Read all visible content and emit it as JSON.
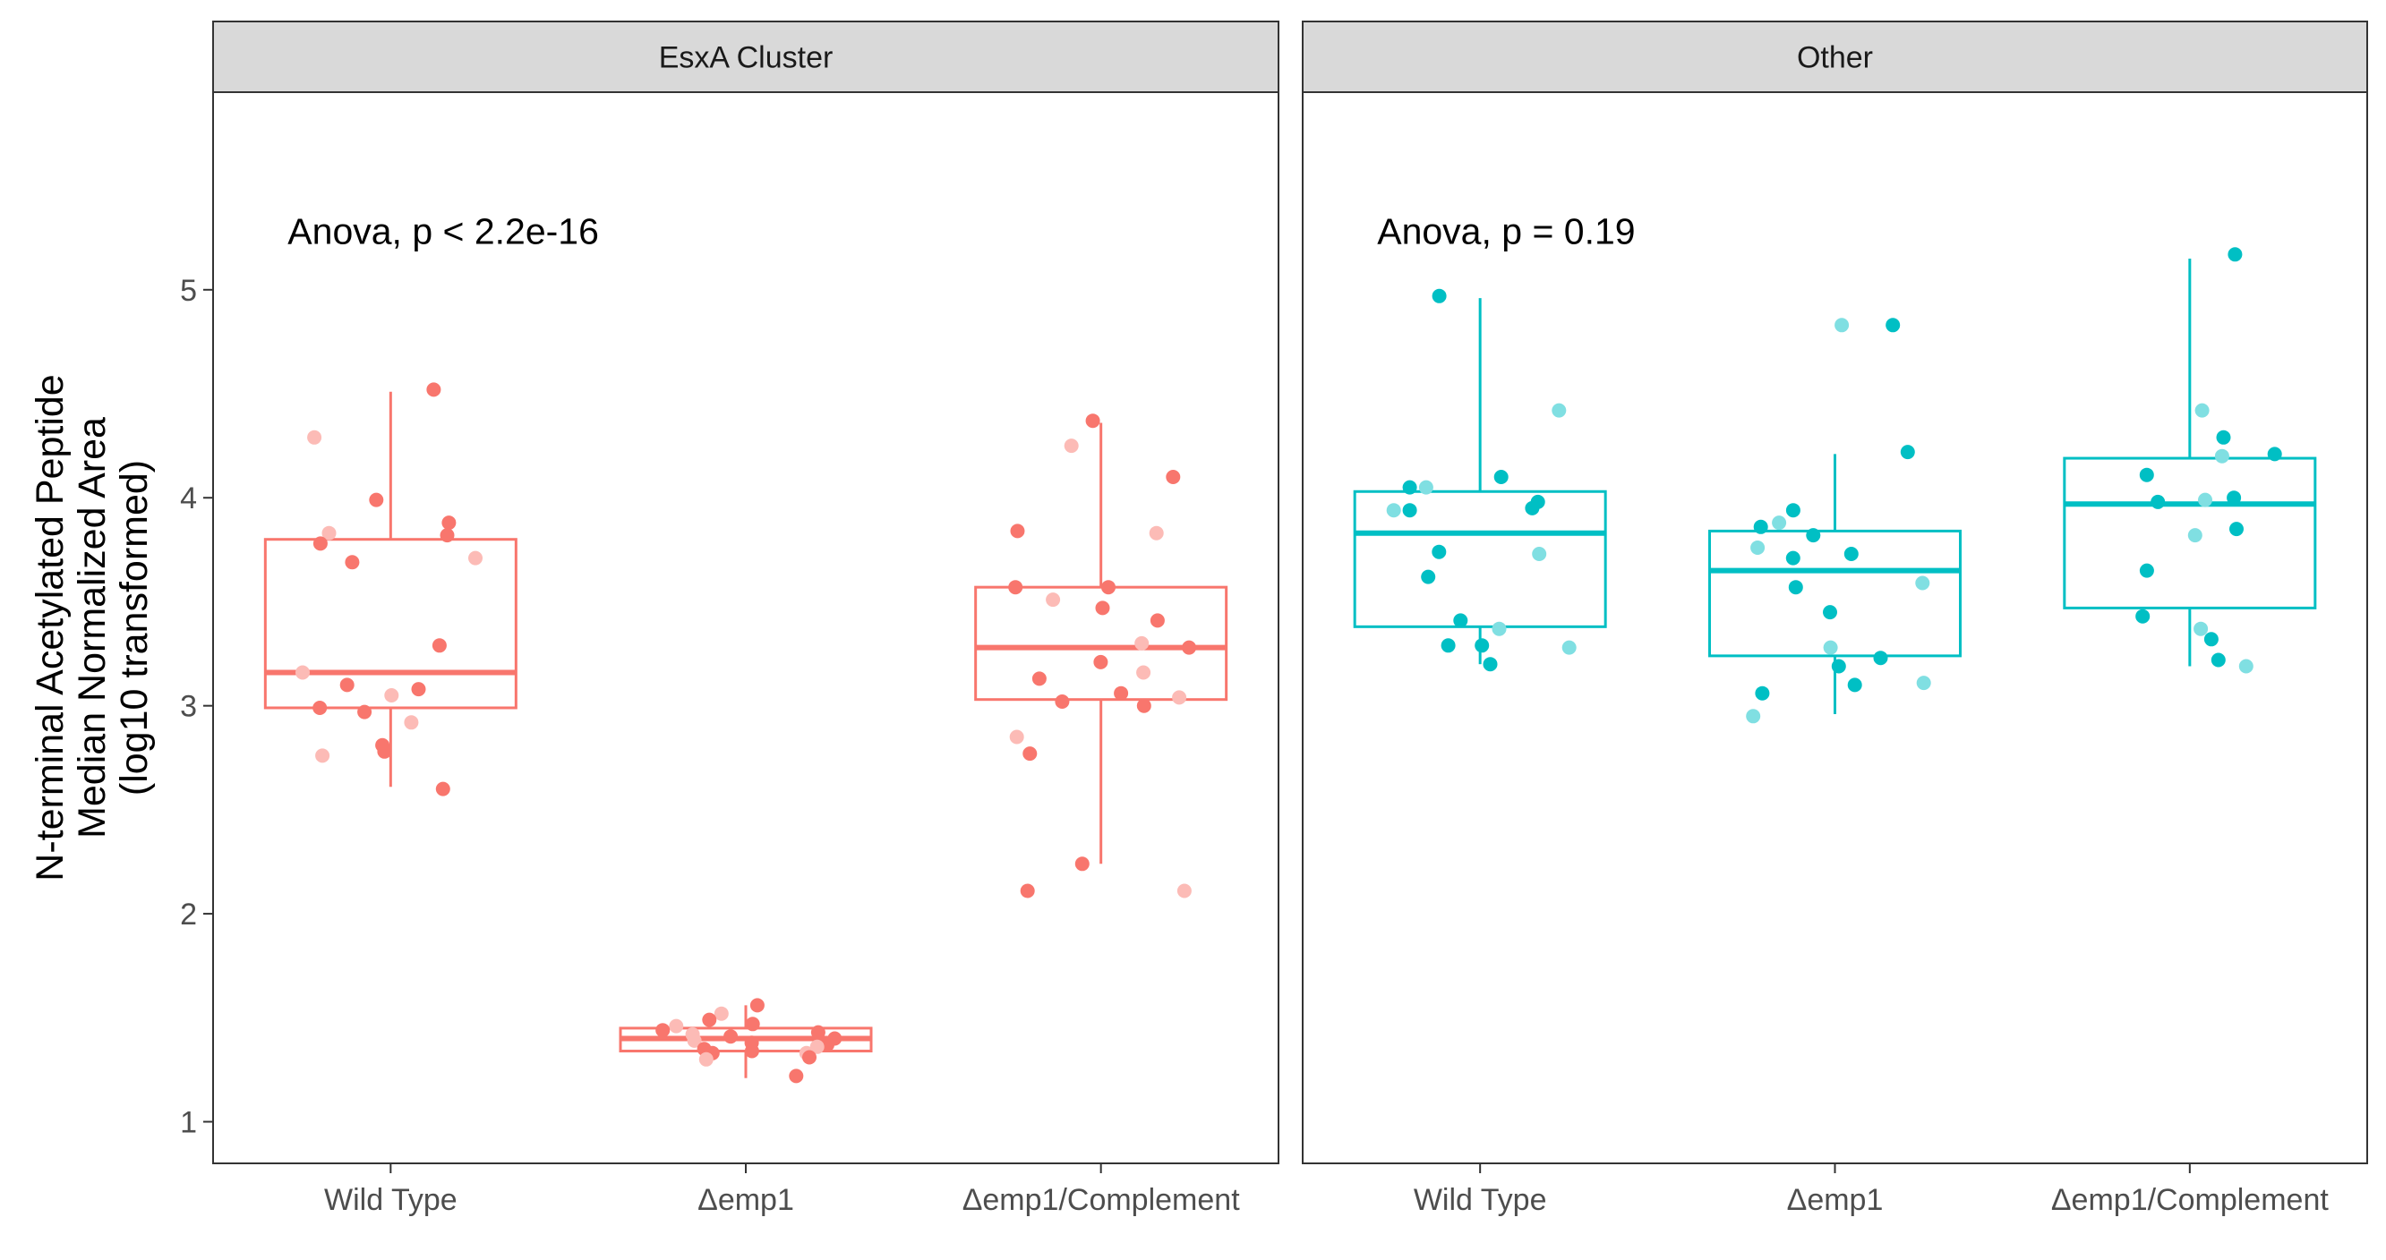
{
  "chart_data": {
    "type": "boxplot",
    "ylabel_lines": [
      "N-terminal Acetylated Peptide",
      "Median Normalized Area",
      "(log10 transformed)"
    ],
    "yticks": [
      1,
      2,
      3,
      4,
      5
    ],
    "ylim": [
      0.8,
      5.95
    ],
    "categories": [
      "Wild Type",
      "Δemp1",
      "Δemp1/Complement"
    ],
    "grid": false,
    "panels": [
      {
        "strip": "EsxA Cluster",
        "color": "#F8766D",
        "annotation": "Anova, p < 2.2e-16",
        "boxes": [
          {
            "category": "Wild Type",
            "min": 2.61,
            "q1": 2.99,
            "median": 3.16,
            "q3": 3.8,
            "max": 4.51,
            "points": [
              4.52,
              4.29,
              3.99,
              3.88,
              3.83,
              3.82,
              3.78,
              3.71,
              3.69,
              3.29,
              3.16,
              3.1,
              3.08,
              3.05,
              2.99,
              2.97,
              2.92,
              2.81,
              2.78,
              2.76,
              2.6
            ]
          },
          {
            "category": "Δemp1",
            "min": 1.21,
            "q1": 1.34,
            "median": 1.4,
            "q3": 1.45,
            "max": 1.56,
            "points": [
              1.56,
              1.52,
              1.49,
              1.47,
              1.46,
              1.44,
              1.43,
              1.42,
              1.41,
              1.4,
              1.39,
              1.38,
              1.37,
              1.36,
              1.35,
              1.34,
              1.33,
              1.33,
              1.31,
              1.3,
              1.22
            ]
          },
          {
            "category": "Δemp1/Complement",
            "min": 2.24,
            "q1": 3.03,
            "median": 3.28,
            "q3": 3.57,
            "max": 4.36,
            "points": [
              4.37,
              4.25,
              4.1,
              3.84,
              3.83,
              3.57,
              3.57,
              3.51,
              3.47,
              3.41,
              3.3,
              3.28,
              3.21,
              3.16,
              3.13,
              3.06,
              3.04,
              3.02,
              3.0,
              2.85,
              2.77,
              2.24,
              2.11,
              2.11
            ]
          }
        ]
      },
      {
        "strip": "Other",
        "color": "#00BFC4",
        "annotation": "Anova, p = 0.19",
        "boxes": [
          {
            "category": "Wild Type",
            "min": 3.2,
            "q1": 3.38,
            "median": 3.83,
            "q3": 4.03,
            "max": 4.96,
            "points": [
              4.97,
              4.42,
              4.1,
              4.05,
              4.05,
              3.98,
              3.95,
              3.94,
              3.94,
              3.74,
              3.73,
              3.62,
              3.41,
              3.37,
              3.29,
              3.29,
              3.28,
              3.2
            ]
          },
          {
            "category": "Δemp1",
            "min": 2.96,
            "q1": 3.24,
            "median": 3.65,
            "q3": 3.84,
            "max": 4.21,
            "points": [
              4.83,
              4.83,
              4.22,
              3.94,
              3.88,
              3.86,
              3.82,
              3.76,
              3.73,
              3.71,
              3.59,
              3.57,
              3.45,
              3.28,
              3.23,
              3.19,
              3.11,
              3.1,
              3.06,
              2.95
            ]
          },
          {
            "category": "Δemp1/Complement",
            "min": 3.19,
            "q1": 3.47,
            "median": 3.97,
            "q3": 4.19,
            "max": 5.15,
            "points": [
              5.17,
              4.42,
              4.29,
              4.21,
              4.2,
              4.11,
              4.0,
              3.99,
              3.98,
              3.85,
              3.82,
              3.65,
              3.43,
              3.37,
              3.32,
              3.22,
              3.19
            ]
          }
        ]
      }
    ]
  }
}
